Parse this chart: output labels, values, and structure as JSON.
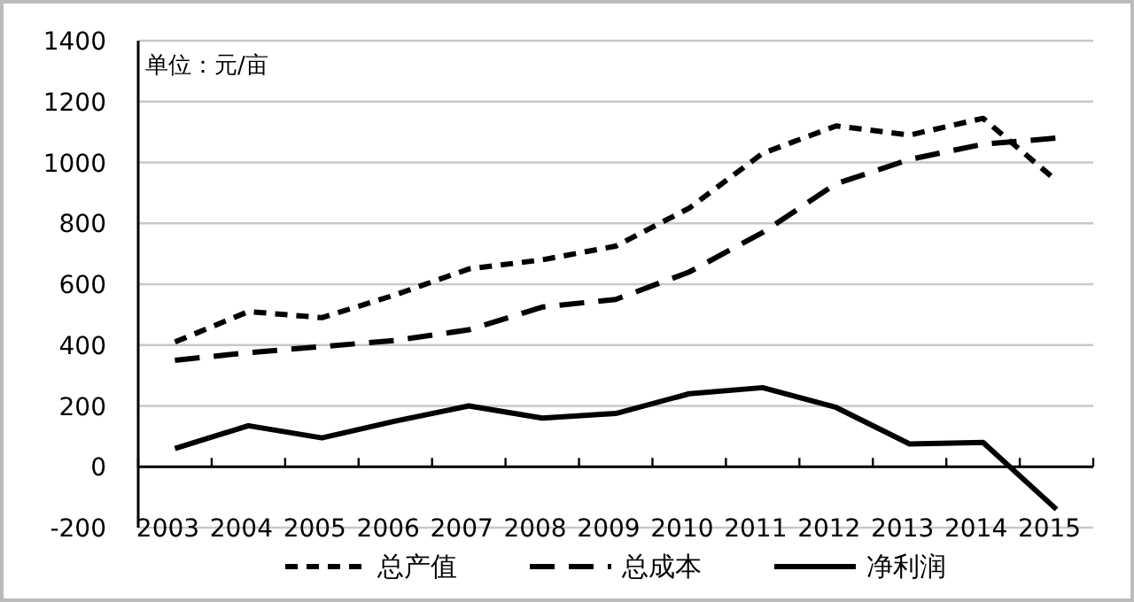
{
  "chart_data": {
    "type": "line",
    "categories": [
      "2003",
      "2004",
      "2005",
      "2006",
      "2007",
      "2008",
      "2009",
      "2010",
      "2011",
      "2012",
      "2013",
      "2014",
      "2015"
    ],
    "series": [
      {
        "name": "总产值",
        "color": "#000000",
        "line_style": "dotted",
        "values": [
          410,
          510,
          490,
          565,
          650,
          680,
          725,
          850,
          1030,
          1120,
          1090,
          1145,
          940
        ]
      },
      {
        "name": "总成本",
        "color": "#000000",
        "line_style": "dashed",
        "values": [
          350,
          375,
          395,
          415,
          450,
          525,
          550,
          640,
          770,
          930,
          1010,
          1060,
          1080
        ]
      },
      {
        "name": "净利润",
        "color": "#000000",
        "line_style": "solid",
        "values": [
          60,
          135,
          95,
          150,
          200,
          160,
          175,
          240,
          260,
          195,
          75,
          80,
          -140
        ]
      }
    ],
    "ylim": [
      -200,
      1400
    ],
    "yticks": [
      -200,
      0,
      200,
      400,
      600,
      800,
      1000,
      1200,
      1400
    ],
    "grid": "y",
    "legend": "bottom",
    "annotations": [
      "单位：元/亩"
    ]
  }
}
